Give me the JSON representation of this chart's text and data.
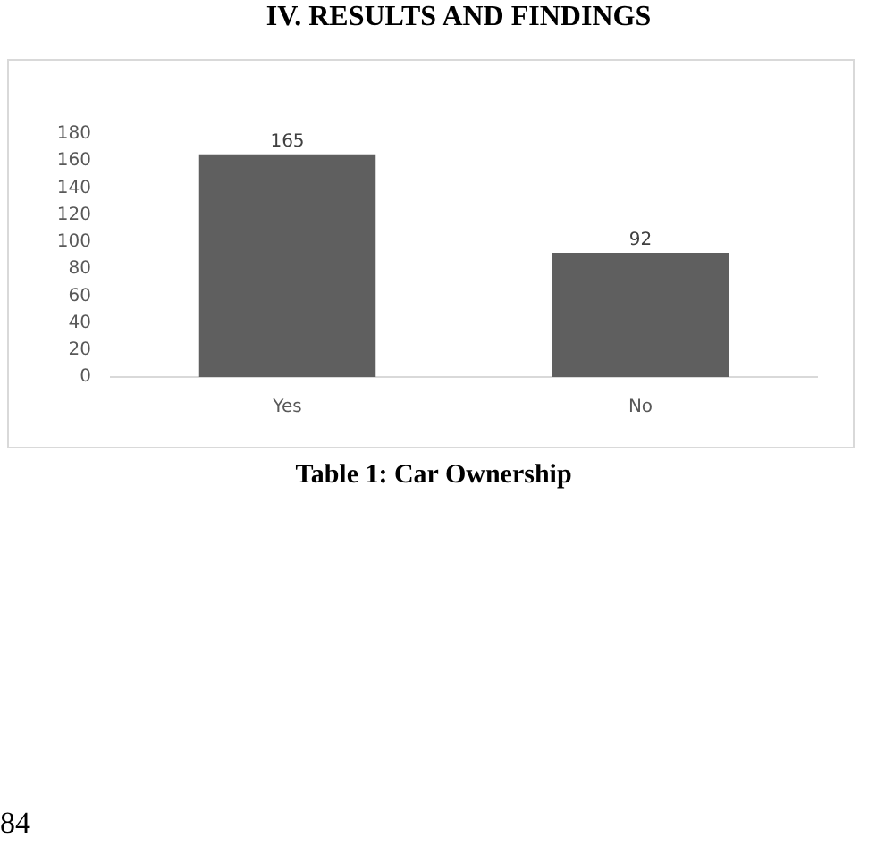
{
  "chart_data": {
    "type": "bar",
    "title": "IV. RESULTS AND FINDINGS",
    "categories": [
      "Yes",
      "No"
    ],
    "values": [
      165,
      92
    ],
    "color": "#5f5f5f",
    "ylim": [
      0,
      180
    ],
    "yticks": [
      0,
      20,
      40,
      60,
      80,
      100,
      120,
      140,
      160,
      180
    ],
    "data_labels": true,
    "annotations": [
      "Table 1: Car Ownership",
      "84"
    ]
  }
}
